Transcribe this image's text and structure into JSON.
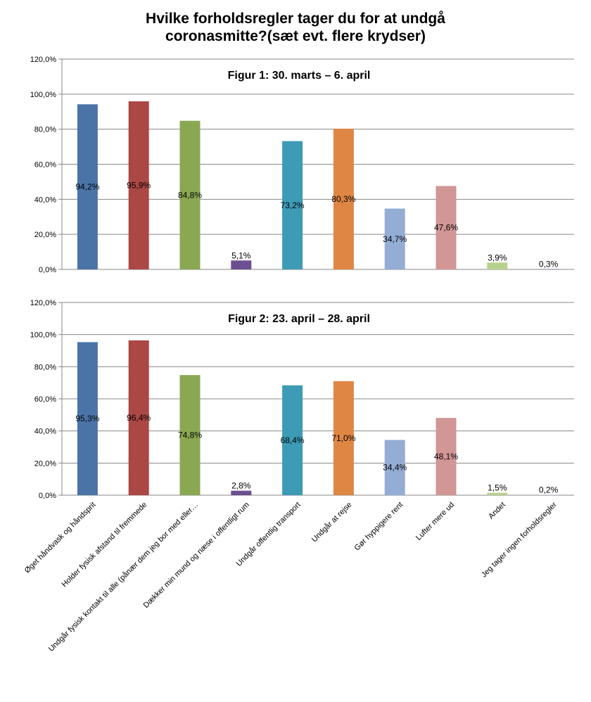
{
  "title_line1": "Hvilke forholdsregler tager du for at undgå",
  "title_line2": "coronasmitte?(sæt evt. flere krydser)",
  "chart_data": [
    {
      "type": "bar",
      "title": "Figur 1: 30. marts – 6. april",
      "categories": [
        "Øget håndvask og håndsprit",
        "Holder fysisk afstand til fremmede",
        "Undgår fysisk kontakt til alle (pånær dem jeg bor med eller…",
        "Dækker min mund og næse i offentligt rum",
        "Undgår offentlig transport",
        "Undgår at rejse",
        "Gør hyppigere rent",
        "Lufter mere ud",
        "Andet",
        "Jeg tager ingen forholdsregler"
      ],
      "values": [
        94.2,
        95.9,
        84.8,
        5.1,
        73.2,
        80.3,
        34.7,
        47.6,
        3.9,
        0.3
      ],
      "value_labels": [
        "94,2%",
        "95,9%",
        "84,8%",
        "5,1%",
        "73,2%",
        "80,3%",
        "34,7%",
        "47,6%",
        "3,9%",
        "0,3%"
      ],
      "ylim": [
        0,
        120
      ],
      "yticks": [
        "0,0%",
        "20,0%",
        "40,0%",
        "60,0%",
        "80,0%",
        "100,0%",
        "120,0%"
      ],
      "grid": true
    },
    {
      "type": "bar",
      "title": "Figur 2: 23. april – 28. april",
      "categories": [
        "Øget håndvask og håndsprit",
        "Holder fysisk afstand til fremmede",
        "Undgår fysisk kontakt til alle (pånær dem jeg bor med eller…",
        "Dækker min mund og næse i offentligt rum",
        "Undgår offentlig transport",
        "Undgår at rejse",
        "Gør hyppigere rent",
        "Lufter mere ud",
        "Andet",
        "Jeg tager ingen forholdsregler"
      ],
      "values": [
        95.3,
        96.4,
        74.8,
        2.8,
        68.4,
        71.0,
        34.4,
        48.1,
        1.5,
        0.2
      ],
      "value_labels": [
        "95,3%",
        "96,4%",
        "74,8%",
        "2,8%",
        "68,4%",
        "71,0%",
        "34,4%",
        "48,1%",
        "1,5%",
        "0,2%"
      ],
      "ylim": [
        0,
        120
      ],
      "yticks": [
        "0,0%",
        "20,0%",
        "40,0%",
        "60,0%",
        "80,0%",
        "100,0%",
        "120,0%"
      ],
      "grid": true
    }
  ],
  "colors": [
    "#4a74a8",
    "#ab4744",
    "#8aa852",
    "#6c4f91",
    "#3e9bb6",
    "#de8643",
    "#94add5",
    "#d29695",
    "#b7d18e",
    "#a898c2"
  ]
}
